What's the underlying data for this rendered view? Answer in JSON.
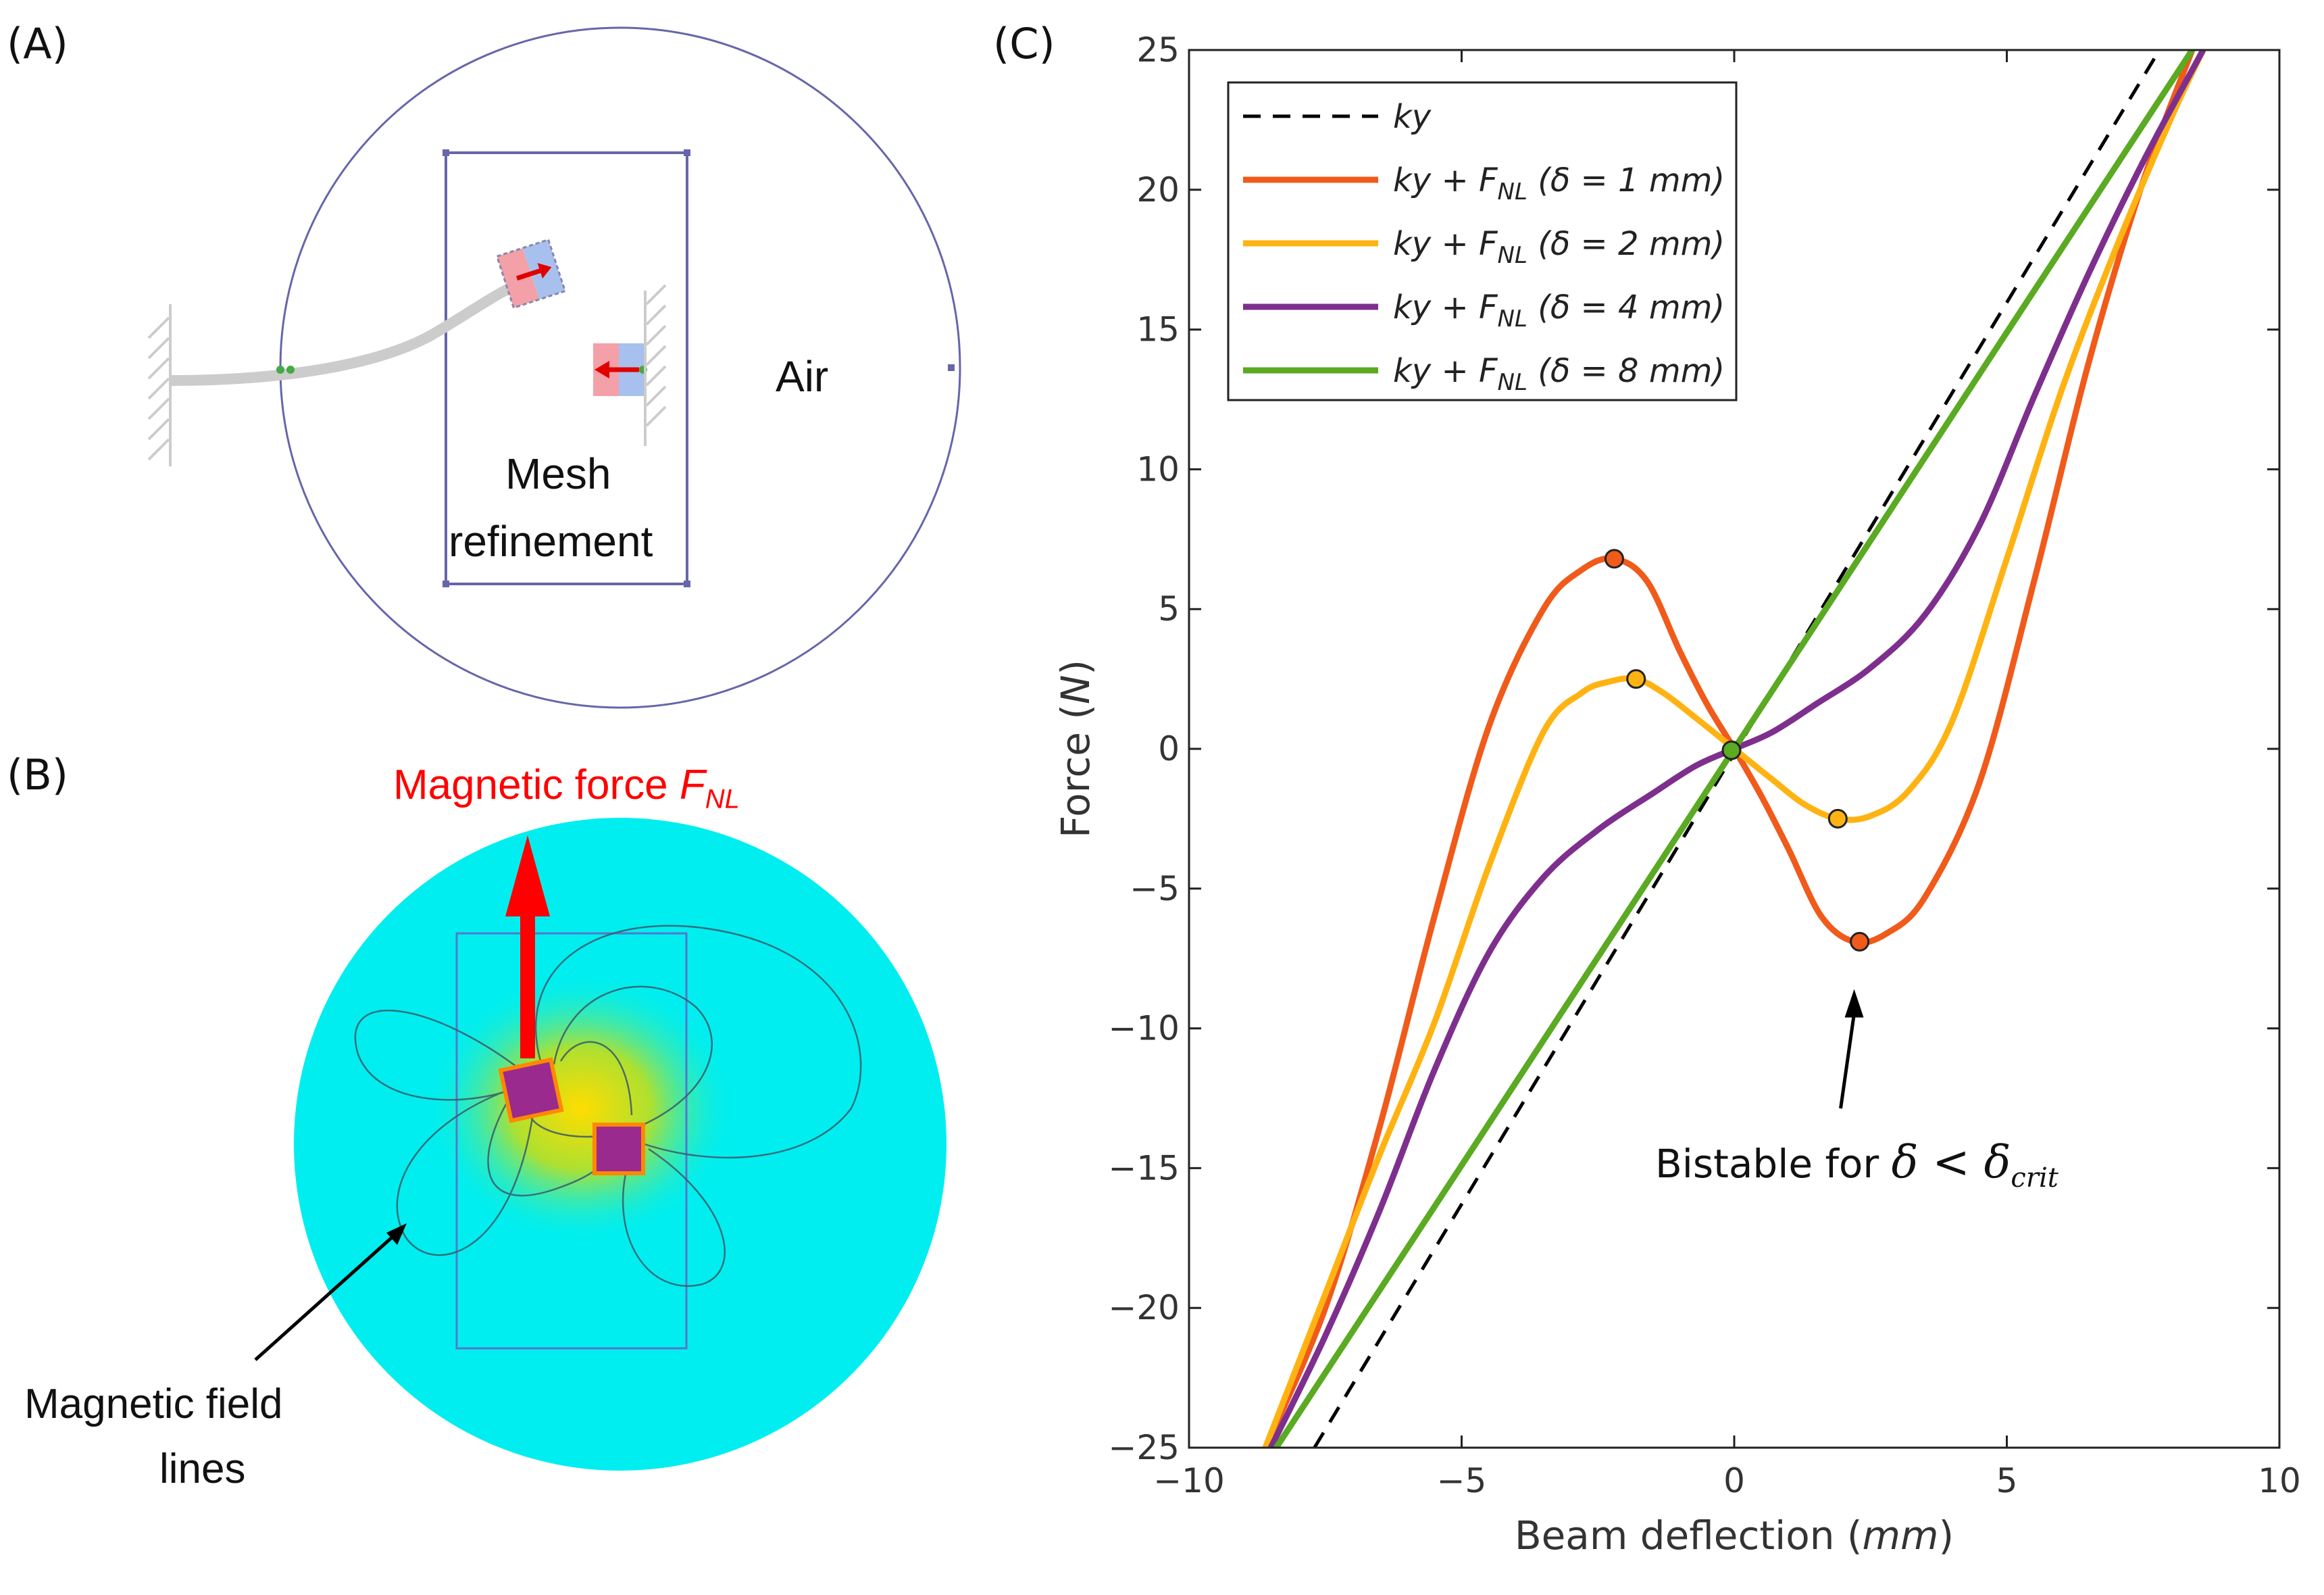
{
  "panel_a": {
    "label": "(A)",
    "air_label": "Air",
    "mesh_label_line1": "Mesh",
    "mesh_label_line2": "refinement"
  },
  "panel_b": {
    "label": "(B)",
    "force_label": "Magnetic force",
    "force_symbol": "F",
    "force_subscript": "NL",
    "field_label_line1": "Magnetic field",
    "field_label_line2": "lines"
  },
  "colors": {
    "ky": "#000000",
    "d1": "#f05a1a",
    "d2": "#ffb312",
    "d4": "#7e2f8e",
    "d8": "#5aaa22",
    "domain_edge": "#6666aa",
    "field_bg": "#00eef0",
    "force_arrow": "#ff0000"
  },
  "chart_data": {
    "panel_label": "(C)",
    "type": "line",
    "xlabel": "Beam deflection",
    "xlabel_unit": "mm",
    "ylabel": "Force",
    "ylabel_unit": "N",
    "xlim": [
      -10,
      10
    ],
    "ylim": [
      -25,
      25
    ],
    "xticks": [
      -10,
      -5,
      0,
      5,
      10
    ],
    "yticks": [
      -25,
      -20,
      -15,
      -10,
      -5,
      0,
      5,
      10,
      15,
      20,
      25
    ],
    "tick_labels_x": [
      "−10",
      "−5",
      "0",
      "5",
      "10"
    ],
    "tick_labels_y": [
      "−25",
      "−20",
      "−15",
      "−10",
      "−5",
      "0",
      "5",
      "10",
      "15",
      "20",
      "25"
    ],
    "legend_position": "top-left",
    "series": [
      {
        "name": "ky",
        "key": "ky",
        "dashed": true,
        "legend_main": "ky",
        "legend_suffix": "",
        "x": [
          -7.7,
          7.8
        ],
        "y": [
          -25,
          25
        ]
      },
      {
        "name": "ky + F_NL (δ = 1 mm)",
        "key": "d1",
        "dashed": false,
        "legend_main": "ky + F",
        "legend_sub": "NL",
        "legend_suffix": " (δ = 1 mm)",
        "x": [
          -8.6,
          -7.5,
          -6.5,
          -5.5,
          -4.5,
          -3.5,
          -2.8,
          -2.2,
          -1.6,
          -1.0,
          -0.5,
          0,
          0.5,
          1.0,
          1.6,
          2.2,
          2.8,
          3.5,
          4.5,
          5.5,
          6.5,
          7.5,
          8.4
        ],
        "y": [
          -25,
          -20,
          -13.5,
          -6.0,
          0.8,
          5.0,
          6.4,
          6.8,
          6.0,
          3.5,
          1.6,
          0,
          -1.7,
          -3.6,
          -6.0,
          -6.9,
          -6.6,
          -5.3,
          -1.2,
          6.0,
          13.8,
          20.3,
          25
        ]
      },
      {
        "name": "ky + F_NL (δ = 2 mm)",
        "key": "d2",
        "dashed": false,
        "legend_main": "ky + F",
        "legend_sub": "NL",
        "legend_suffix": " (δ = 2 mm)",
        "x": [
          -8.6,
          -7.5,
          -6.5,
          -5.5,
          -4.5,
          -3.5,
          -2.8,
          -2.3,
          -1.8,
          -1.3,
          -0.7,
          0,
          0.7,
          1.3,
          1.9,
          2.5,
          3.2,
          4.0,
          5.0,
          6.0,
          7.0,
          8.0,
          8.6
        ],
        "y": [
          -25,
          -19.5,
          -14.5,
          -9.8,
          -4.2,
          0.6,
          2.0,
          2.4,
          2.5,
          2.0,
          1.1,
          0,
          -1.1,
          -2.0,
          -2.5,
          -2.4,
          -1.5,
          1.0,
          6.8,
          12.8,
          17.9,
          22.5,
          25
        ]
      },
      {
        "name": "ky + F_NL (δ = 4 mm)",
        "key": "d4",
        "dashed": false,
        "legend_main": "ky + F",
        "legend_sub": "NL",
        "legend_suffix": " (δ = 4 mm)",
        "x": [
          -8.5,
          -7.5,
          -6.5,
          -5.5,
          -4.5,
          -3.5,
          -2.5,
          -1.5,
          -0.7,
          0,
          0.7,
          1.5,
          2.5,
          3.5,
          4.5,
          5.5,
          6.5,
          7.5,
          8.6
        ],
        "y": [
          -25,
          -21.0,
          -16.5,
          -11.5,
          -7.3,
          -4.6,
          -2.9,
          -1.6,
          -0.6,
          0,
          0.6,
          1.6,
          2.9,
          4.8,
          8.0,
          12.6,
          17.0,
          21.0,
          25
        ]
      },
      {
        "name": "ky + F_NL (δ = 8 mm)",
        "key": "d8",
        "dashed": false,
        "legend_main": "ky + F",
        "legend_sub": "NL",
        "legend_suffix": " (δ = 8 mm)",
        "x": [
          -8.4,
          -5,
          0,
          5,
          8.4
        ],
        "y": [
          -25,
          -14.9,
          0,
          14.9,
          25
        ]
      }
    ],
    "markers": [
      {
        "key": "d1",
        "x": -2.2,
        "y": 6.8
      },
      {
        "key": "d1",
        "x": 2.3,
        "y": -6.9
      },
      {
        "key": "d2",
        "x": -1.8,
        "y": 2.5
      },
      {
        "key": "d2",
        "x": 1.9,
        "y": -2.5
      },
      {
        "key": "d8",
        "x": -0.05,
        "y": -0.05
      }
    ],
    "annotation": {
      "text": "Bistable for",
      "symbol": "δ",
      "relation": "<",
      "symbol2": "δ",
      "sub": "crit",
      "arrow_to_x": 2.2,
      "arrow_to_y": -8.5
    }
  }
}
